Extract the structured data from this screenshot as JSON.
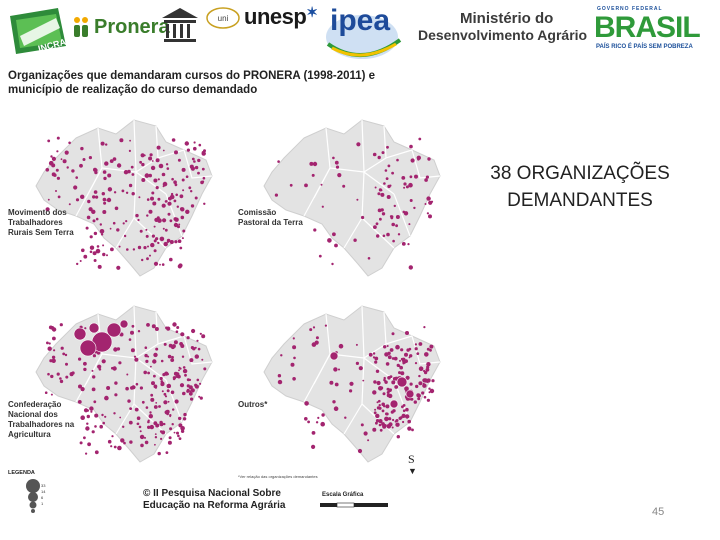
{
  "header": {
    "logos": {
      "pronera": "Pronera",
      "unesp": "unesp",
      "ipea": "ipea",
      "mda_line1": "Ministério do",
      "mda_line2": "Desenvolvimento Agrário",
      "brasil_gov": "GOVERNO FEDERAL",
      "brasil_word": "BRASIL",
      "brasil_slogan": "PAÍS RICO É PAÍS SEM POBREZA"
    }
  },
  "map_title": "Organizações que demandaram cursos do PRONERA (1998-2011) e município de realização do curso demandado",
  "maps": [
    {
      "label": "Movimento dos Trabalhadores Rurais Sem Terra"
    },
    {
      "label": "Comissão Pastoral da Terra"
    },
    {
      "label": "Confederação Nacional dos Trabalhadores na Agricultura"
    },
    {
      "label": "Outros*"
    }
  ],
  "side_title": "38 ORGANIZAÇÕES DEMANDANTES",
  "legend": {
    "title": "LEGENDA",
    "values": [
      "33",
      "14",
      "6",
      "1"
    ]
  },
  "footnote": "*Ver relação das organizações demandantes",
  "survey_title": "© II Pesquisa Nacional Sobre Educação na Reforma Agrária",
  "scale": {
    "title": "Escala Gráfica"
  },
  "north_label": "S",
  "page_number": "45",
  "colors": {
    "dot": "#a3246f",
    "state_fill": "#e3e3e3",
    "state_stroke": "#ffffff",
    "ipea_blue": "#1e4b9a",
    "pronera_green": "#3a7d2b",
    "brasil_green": "#2f9a3a",
    "brasil_yellow": "#f2c200"
  },
  "icons": [
    "incra-logo",
    "pronera-logo",
    "unesco-logo",
    "unitau-logo",
    "unesp-logo",
    "ipea-logo",
    "mda-logo",
    "brasil-logo",
    "north-arrow-icon"
  ]
}
